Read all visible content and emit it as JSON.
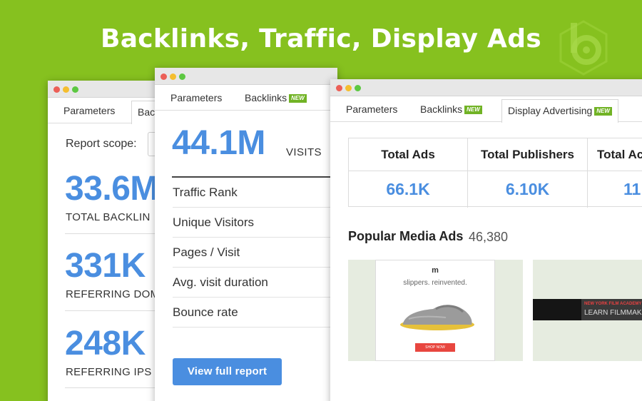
{
  "headline": "Backlinks, Traffic, Display Ads",
  "colors": {
    "background": "#86c11f",
    "accent_blue": "#4a8ee0",
    "new_badge": "#71b325"
  },
  "window1": {
    "tabs": {
      "parameters": "Parameters",
      "backlinks": "Bac"
    },
    "report_scope_label": "Report scope:",
    "metrics": [
      {
        "value": "33.6M",
        "label": "TOTAL BACKLIN"
      },
      {
        "value": "331K",
        "label": "REFERRING DOM"
      },
      {
        "value": "248K",
        "label": "REFERRING IPS"
      }
    ]
  },
  "window2": {
    "tabs": {
      "parameters": "Parameters",
      "backlinks": "Backlinks",
      "backlinks_badge": "NEW"
    },
    "visits_value": "44.1M",
    "visits_label": "VISITS",
    "metrics": [
      "Traffic Rank",
      "Unique Visitors",
      "Pages / Visit",
      "Avg. visit duration",
      "Bounce rate"
    ],
    "button": "View full report"
  },
  "window3": {
    "tabs": {
      "parameters": "Parameters",
      "backlinks": "Backlinks",
      "backlinks_badge": "NEW",
      "display_ads": "Display Advertising",
      "display_ads_badge": "NEW"
    },
    "stats": [
      {
        "header": "Total Ads",
        "value": "66.1K"
      },
      {
        "header": "Total Publishers",
        "value": "6.10K"
      },
      {
        "header": "Total Ac",
        "value": "11"
      }
    ],
    "popular_media_title": "Popular Media Ads",
    "popular_media_count": "46,380",
    "ad1": {
      "brand": "m",
      "tagline": "slippers. reinvented.",
      "button": "SHOP NOW"
    },
    "ad2": {
      "line1": "NEW YORK FILM ACADEMY",
      "line2": "LEARN FILMMAKING"
    }
  }
}
